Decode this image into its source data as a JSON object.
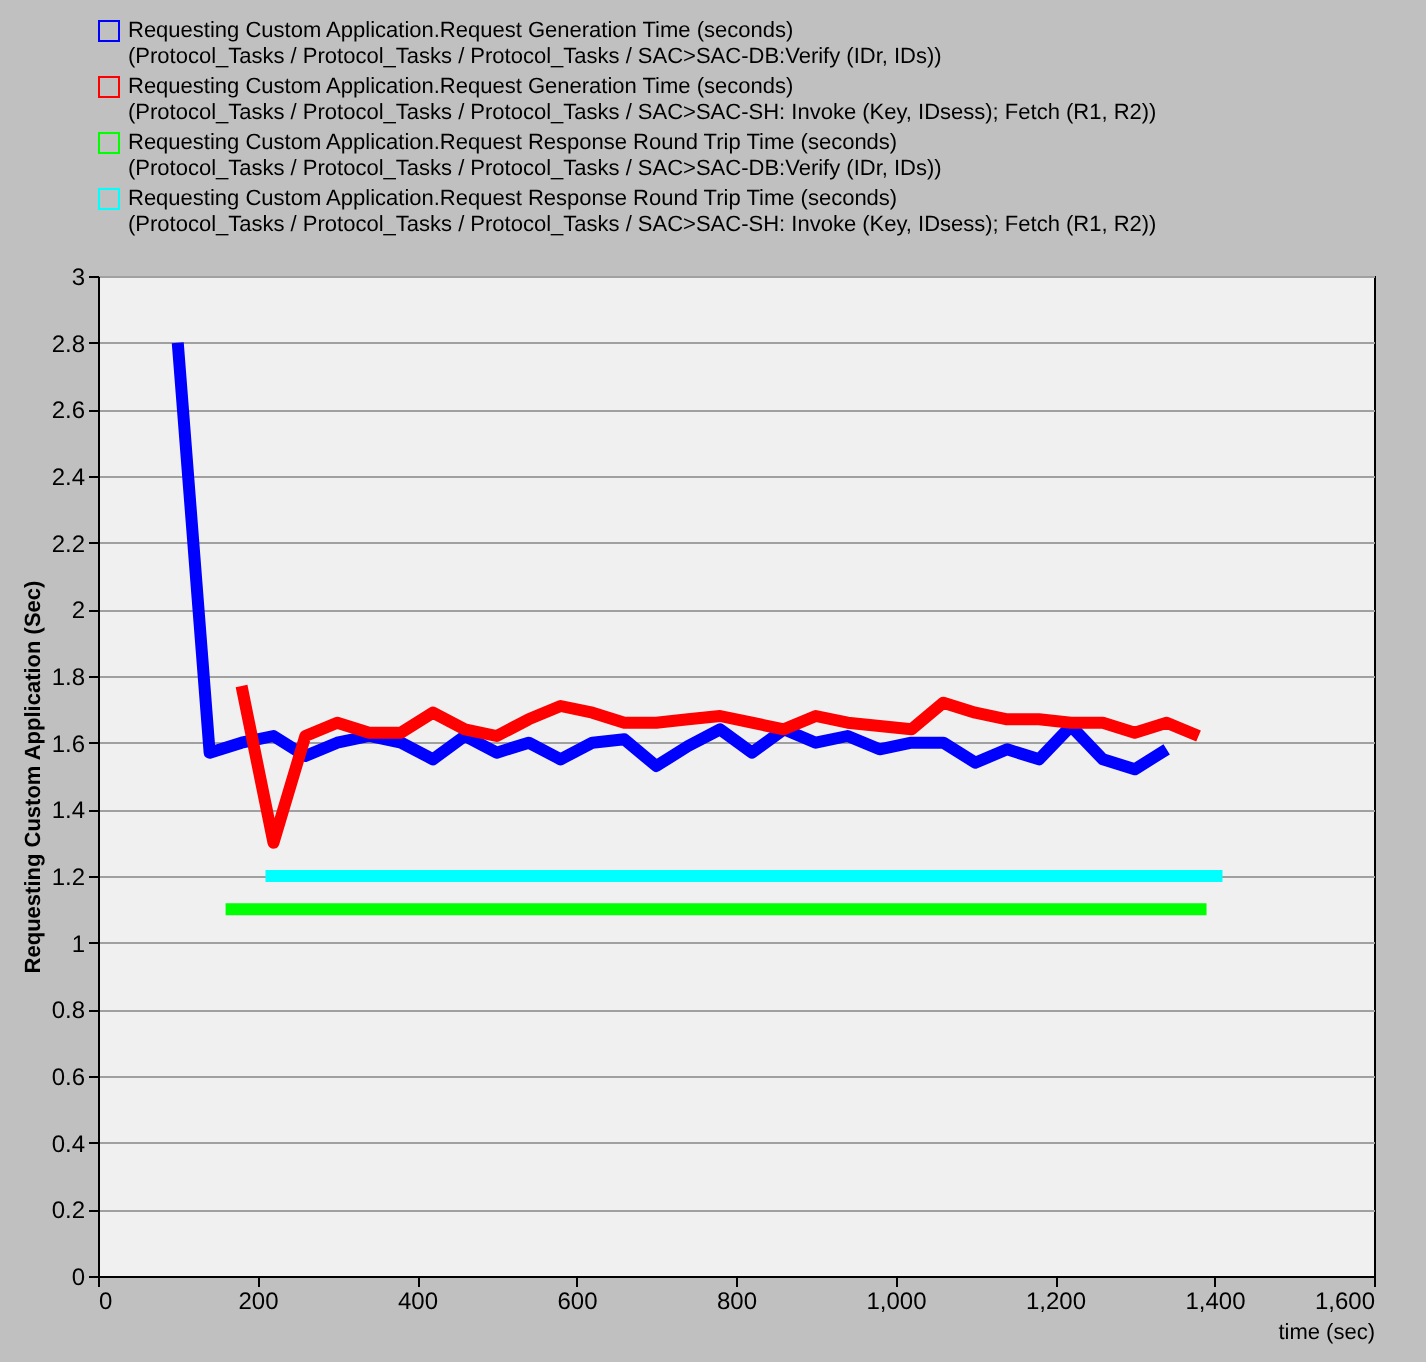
{
  "chart_data": {
    "type": "line",
    "xlabel": "time (sec)",
    "ylabel": "Requesting Custom Application (Sec)",
    "xlim": [
      0,
      1600
    ],
    "xticks": [
      0,
      200,
      400,
      600,
      800,
      {
        "value": 1000,
        "label": "1,000"
      },
      {
        "value": 1200,
        "label": "1,200"
      },
      {
        "value": 1400,
        "label": "1,400"
      },
      {
        "value": 1600,
        "label": "1,600"
      }
    ],
    "ylim": [
      0,
      3
    ],
    "yticks": [
      0,
      0.2,
      0.4,
      0.6,
      0.8,
      1,
      1.2,
      1.4,
      1.6,
      1.8,
      2,
      2.2,
      2.4,
      2.6,
      2.8,
      3
    ],
    "grid": "y",
    "legend": "top",
    "marker": "none",
    "line_style": "solid",
    "series": [
      {
        "name": "Requesting Custom Application.Request Generation Time (seconds)\n(Protocol_Tasks / Protocol_Tasks / Protocol_Tasks / SAC>SAC-DB:Verify (IDr, IDs))",
        "color": "#0000ff",
        "x": [
          100,
          140,
          180,
          220,
          260,
          300,
          340,
          380,
          420,
          460,
          500,
          540,
          580,
          620,
          660,
          700,
          740,
          780,
          820,
          860,
          900,
          940,
          980,
          1020,
          1060,
          1100,
          1140,
          1180,
          1220,
          1260,
          1300,
          1340
        ],
        "values": [
          2.8,
          1.57,
          1.6,
          1.62,
          1.56,
          1.6,
          1.62,
          1.6,
          1.55,
          1.62,
          1.57,
          1.6,
          1.55,
          1.6,
          1.61,
          1.53,
          1.59,
          1.64,
          1.57,
          1.64,
          1.6,
          1.62,
          1.58,
          1.6,
          1.6,
          1.54,
          1.58,
          1.55,
          1.65,
          1.55,
          1.52,
          1.58
        ]
      },
      {
        "name": "Requesting Custom Application.Request Generation Time (seconds)\n(Protocol_Tasks / Protocol_Tasks / Protocol_Tasks / SAC>SAC-SH: Invoke (Key, IDsess); Fetch (R1, R2))",
        "color": "#ff0000",
        "x": [
          180,
          220,
          260,
          300,
          340,
          380,
          420,
          460,
          500,
          540,
          580,
          620,
          660,
          700,
          740,
          780,
          820,
          860,
          900,
          940,
          980,
          1020,
          1060,
          1100,
          1140,
          1180,
          1220,
          1260,
          1300,
          1340,
          1380
        ],
        "values": [
          1.77,
          1.3,
          1.62,
          1.66,
          1.63,
          1.63,
          1.69,
          1.64,
          1.62,
          1.67,
          1.71,
          1.69,
          1.66,
          1.66,
          1.67,
          1.68,
          1.66,
          1.64,
          1.68,
          1.66,
          1.65,
          1.64,
          1.72,
          1.69,
          1.67,
          1.67,
          1.66,
          1.66,
          1.63,
          1.66,
          1.62
        ]
      },
      {
        "name": "Requesting Custom Application.Request Response Round Trip Time (seconds)\n(Protocol_Tasks / Protocol_Tasks / Protocol_Tasks / SAC>SAC-DB:Verify (IDr, IDs))",
        "color": "#00ff00",
        "x": [
          160,
          1390
        ],
        "values": [
          1.1,
          1.1
        ]
      },
      {
        "name": "Requesting Custom Application.Request Response Round Trip Time (seconds)\n(Protocol_Tasks / Protocol_Tasks / Protocol_Tasks / SAC>SAC-SH: Invoke (Key, IDsess); Fetch (R1, R2))",
        "color": "#00ffff",
        "x": [
          210,
          1410
        ],
        "values": [
          1.2,
          1.2
        ]
      }
    ]
  }
}
